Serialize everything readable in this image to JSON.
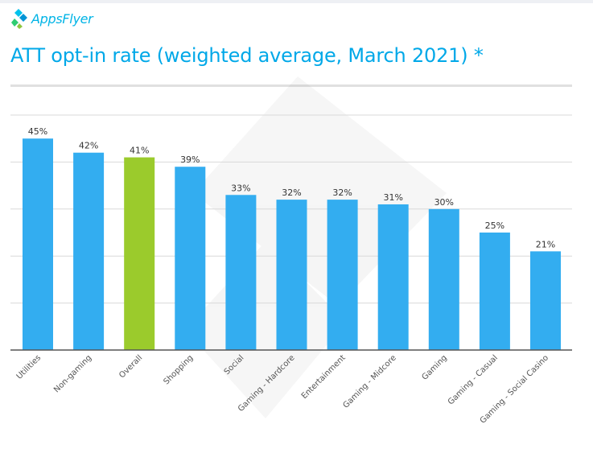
{
  "header": {
    "logo_text": "AppsFlyer",
    "title": "ATT opt-in rate (weighted average, March 2021) *"
  },
  "colors": {
    "bar": "#33adf0",
    "highlight": "#9bcb2c",
    "title": "#00a8e8",
    "grid": "#d9d9d9",
    "axis": "#555555"
  },
  "chart_data": {
    "type": "bar",
    "title": "ATT opt-in rate (weighted average, March 2021) *",
    "xlabel": "",
    "ylabel": "",
    "categories": [
      "Utilities",
      "Non-gaming",
      "Overall",
      "Shopping",
      "Social",
      "Gaming - Hardcore",
      "Entertainment",
      "Gaming - Midcore",
      "Gaming",
      "Gaming - Casual",
      "Gaming - Social Casino"
    ],
    "values": [
      45,
      42,
      41,
      39,
      33,
      32,
      32,
      31,
      30,
      25,
      21
    ],
    "value_labels": [
      "45%",
      "42%",
      "41%",
      "39%",
      "33%",
      "32%",
      "32%",
      "31%",
      "30%",
      "25%",
      "21%"
    ],
    "highlight_category": "Overall",
    "ylim": [
      0,
      50
    ],
    "grid_values": [
      10,
      20,
      30,
      40,
      50
    ],
    "grid": true,
    "legend": "none"
  }
}
